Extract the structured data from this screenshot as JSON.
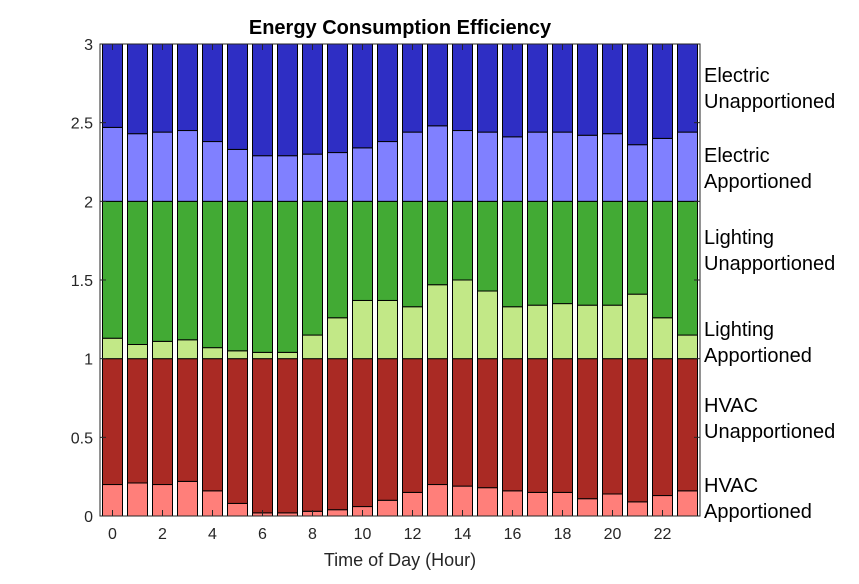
{
  "chart_data": {
    "type": "bar",
    "stacked": true,
    "title": "Energy Consumption Efficiency",
    "xlabel": "Time of Day (Hour)",
    "ylabel": "",
    "ylim": [
      0,
      3
    ],
    "xlim": [
      -0.5,
      23.5
    ],
    "x": [
      0,
      1,
      2,
      3,
      4,
      5,
      6,
      7,
      8,
      9,
      10,
      11,
      12,
      13,
      14,
      15,
      16,
      17,
      18,
      19,
      20,
      21,
      22,
      23
    ],
    "x_ticks": [
      "0",
      "2",
      "4",
      "6",
      "8",
      "10",
      "12",
      "14",
      "16",
      "18",
      "20",
      "22"
    ],
    "y_ticks": [
      "0",
      "0.5",
      "1",
      "1.5",
      "2",
      "2.5",
      "3"
    ],
    "grid": false,
    "legend_placement": "right",
    "series": [
      {
        "name": "HVAC Apportioned",
        "color": "#ff7f7a",
        "values": [
          0.2,
          0.21,
          0.2,
          0.22,
          0.16,
          0.08,
          0.02,
          0.02,
          0.03,
          0.04,
          0.06,
          0.1,
          0.15,
          0.2,
          0.19,
          0.18,
          0.16,
          0.15,
          0.15,
          0.11,
          0.14,
          0.09,
          0.13,
          0.16
        ]
      },
      {
        "name": "HVAC Unapportioned",
        "color": "#aa2a24",
        "values": [
          0.8,
          0.79,
          0.8,
          0.78,
          0.84,
          0.92,
          0.98,
          0.98,
          0.97,
          0.96,
          0.94,
          0.9,
          0.85,
          0.8,
          0.81,
          0.82,
          0.84,
          0.85,
          0.85,
          0.89,
          0.86,
          0.91,
          0.87,
          0.84
        ]
      },
      {
        "name": "Lighting Apportioned",
        "color": "#c2e887",
        "values": [
          0.13,
          0.09,
          0.11,
          0.12,
          0.07,
          0.05,
          0.04,
          0.04,
          0.15,
          0.26,
          0.37,
          0.37,
          0.33,
          0.47,
          0.5,
          0.43,
          0.33,
          0.34,
          0.35,
          0.34,
          0.34,
          0.41,
          0.26,
          0.15
        ]
      },
      {
        "name": "Lighting Unapportioned",
        "color": "#42aa34",
        "values": [
          0.87,
          0.91,
          0.89,
          0.88,
          0.93,
          0.95,
          0.96,
          0.96,
          0.85,
          0.74,
          0.63,
          0.63,
          0.67,
          0.53,
          0.5,
          0.57,
          0.67,
          0.66,
          0.65,
          0.66,
          0.66,
          0.59,
          0.74,
          0.85
        ]
      },
      {
        "name": "Electric Apportioned",
        "color": "#8080ff",
        "values": [
          0.47,
          0.43,
          0.44,
          0.45,
          0.38,
          0.33,
          0.29,
          0.29,
          0.3,
          0.31,
          0.34,
          0.38,
          0.44,
          0.48,
          0.45,
          0.44,
          0.41,
          0.44,
          0.44,
          0.42,
          0.43,
          0.36,
          0.4,
          0.44
        ]
      },
      {
        "name": "Electric Unapportioned",
        "color": "#2e2ec4",
        "values": [
          0.53,
          0.57,
          0.56,
          0.55,
          0.62,
          0.67,
          0.71,
          0.71,
          0.7,
          0.69,
          0.66,
          0.62,
          0.56,
          0.52,
          0.55,
          0.56,
          0.59,
          0.56,
          0.56,
          0.58,
          0.57,
          0.64,
          0.6,
          0.56
        ]
      }
    ],
    "side_labels": [
      {
        "line1": "Electric",
        "line2": "Unapportioned"
      },
      {
        "line1": "Electric",
        "line2": "Apportioned"
      },
      {
        "line1": "Lighting",
        "line2": "Unapportioned"
      },
      {
        "line1": "Lighting",
        "line2": "Apportioned"
      },
      {
        "line1": "HVAC",
        "line2": "Unapportioned"
      },
      {
        "line1": "HVAC",
        "line2": "Apportioned"
      }
    ]
  }
}
